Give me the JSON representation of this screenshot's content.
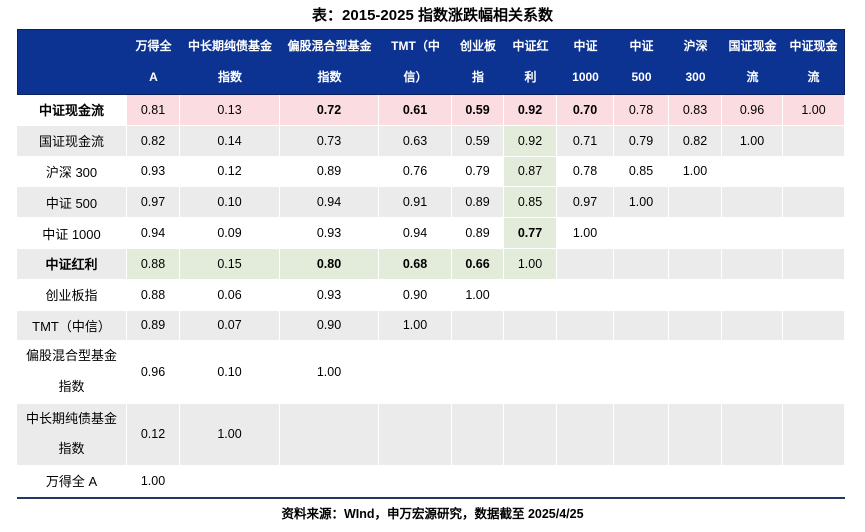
{
  "title": "表：2015-2025 指数涨跌幅相关系数",
  "source_note": "资料来源：WInd，申万宏源研究，数据截至 2025/4/25",
  "colors": {
    "header_bg": "#0D3392",
    "header_border": "#16295C",
    "header_text": "#FFFFFF",
    "stripe_gray": "#EBEBEB",
    "row_white": "#FFFFFF",
    "highlight_pink": "#FADCE1",
    "highlight_green": "#E3ECDA",
    "bottom_rule": "#1F3864",
    "body_text": "#000000"
  },
  "chart_data": {
    "type": "table",
    "title": "表：2015-2025 指数涨跌幅相关系数",
    "source": "资料来源：WInd，申万宏源研究，数据截至 2025/4/25",
    "columns": [
      {
        "label": "万得全 A",
        "lines": [
          "万得全",
          "A"
        ]
      },
      {
        "label": "中长期纯债基金指数",
        "lines": [
          "中长期纯债基金",
          "指数"
        ]
      },
      {
        "label": "偏股混合型基金指数",
        "lines": [
          "偏股混合型基金",
          "指数"
        ]
      },
      {
        "label": "TMT（中信）",
        "lines": [
          "TMT（中",
          "信）"
        ]
      },
      {
        "label": "创业板指",
        "lines": [
          "创业板",
          "指"
        ]
      },
      {
        "label": "中证红利",
        "lines": [
          "中证红",
          "利"
        ]
      },
      {
        "label": "中证 1000",
        "lines": [
          "中证",
          "1000"
        ]
      },
      {
        "label": "中证 500",
        "lines": [
          "中证",
          "500"
        ]
      },
      {
        "label": "沪深 300",
        "lines": [
          "沪深",
          "300"
        ]
      },
      {
        "label": "国证现金流",
        "lines": [
          "国证现金",
          "流"
        ]
      },
      {
        "label": "中证现金流",
        "lines": [
          "中证现金",
          "流"
        ]
      }
    ],
    "rows": [
      {
        "label": "中证现金流",
        "label_lines": [
          "中证现金流"
        ],
        "label_bold": true,
        "stripe": "white",
        "row_highlight": "pink",
        "cells": [
          {
            "v": "0.81"
          },
          {
            "v": "0.13"
          },
          {
            "v": "0.72",
            "b": 1
          },
          {
            "v": "0.61",
            "b": 1
          },
          {
            "v": "0.59",
            "b": 1
          },
          {
            "v": "0.92",
            "b": 1
          },
          {
            "v": "0.70",
            "b": 1
          },
          {
            "v": "0.78"
          },
          {
            "v": "0.83"
          },
          {
            "v": "0.96"
          },
          {
            "v": "1.00"
          }
        ]
      },
      {
        "label": "国证现金流",
        "label_lines": [
          "国证现金流"
        ],
        "label_bold": false,
        "stripe": "gray",
        "row_highlight": null,
        "cells": [
          {
            "v": "0.82"
          },
          {
            "v": "0.14"
          },
          {
            "v": "0.73"
          },
          {
            "v": "0.63"
          },
          {
            "v": "0.59"
          },
          {
            "v": "0.92",
            "g": 1
          },
          {
            "v": "0.71"
          },
          {
            "v": "0.79"
          },
          {
            "v": "0.82"
          },
          {
            "v": "1.00"
          }
        ]
      },
      {
        "label": "沪深 300",
        "label_lines": [
          "沪深 300"
        ],
        "label_bold": false,
        "stripe": "white",
        "row_highlight": null,
        "cells": [
          {
            "v": "0.93"
          },
          {
            "v": "0.12"
          },
          {
            "v": "0.89"
          },
          {
            "v": "0.76"
          },
          {
            "v": "0.79"
          },
          {
            "v": "0.87",
            "g": 1
          },
          {
            "v": "0.78"
          },
          {
            "v": "0.85"
          },
          {
            "v": "1.00"
          }
        ]
      },
      {
        "label": "中证 500",
        "label_lines": [
          "中证 500"
        ],
        "label_bold": false,
        "stripe": "gray",
        "row_highlight": null,
        "cells": [
          {
            "v": "0.97"
          },
          {
            "v": "0.10"
          },
          {
            "v": "0.94"
          },
          {
            "v": "0.91"
          },
          {
            "v": "0.89"
          },
          {
            "v": "0.85",
            "g": 1
          },
          {
            "v": "0.97"
          },
          {
            "v": "1.00"
          }
        ]
      },
      {
        "label": "中证 1000",
        "label_lines": [
          "中证 1000"
        ],
        "label_bold": false,
        "stripe": "white",
        "row_highlight": null,
        "cells": [
          {
            "v": "0.94"
          },
          {
            "v": "0.09"
          },
          {
            "v": "0.93"
          },
          {
            "v": "0.94"
          },
          {
            "v": "0.89"
          },
          {
            "v": "0.77",
            "b": 1,
            "g": 1
          },
          {
            "v": "1.00"
          }
        ]
      },
      {
        "label": "中证红利",
        "label_lines": [
          "中证红利"
        ],
        "label_bold": true,
        "stripe": "gray",
        "row_highlight": null,
        "cells": [
          {
            "v": "0.88",
            "g": 1
          },
          {
            "v": "0.15",
            "g": 1
          },
          {
            "v": "0.80",
            "b": 1,
            "g": 1
          },
          {
            "v": "0.68",
            "b": 1,
            "g": 1
          },
          {
            "v": "0.66",
            "b": 1,
            "g": 1
          },
          {
            "v": "1.00",
            "g": 1
          }
        ]
      },
      {
        "label": "创业板指",
        "label_lines": [
          "创业板指"
        ],
        "label_bold": false,
        "stripe": "white",
        "row_highlight": null,
        "cells": [
          {
            "v": "0.88"
          },
          {
            "v": "0.06"
          },
          {
            "v": "0.93"
          },
          {
            "v": "0.90"
          },
          {
            "v": "1.00"
          }
        ]
      },
      {
        "label": "TMT（中信）",
        "label_lines": [
          "TMT（中信）"
        ],
        "label_bold": false,
        "stripe": "gray",
        "row_highlight": null,
        "cells": [
          {
            "v": "0.89"
          },
          {
            "v": "0.07"
          },
          {
            "v": "0.90"
          },
          {
            "v": "1.00"
          }
        ]
      },
      {
        "label": "偏股混合型基金指数",
        "label_lines": [
          "偏股混合型基金",
          "指数"
        ],
        "label_bold": false,
        "stripe": "white",
        "row_highlight": null,
        "cells": [
          {
            "v": "0.96"
          },
          {
            "v": "0.10"
          },
          {
            "v": "1.00"
          }
        ]
      },
      {
        "label": "中长期纯债基金指数",
        "label_lines": [
          "中长期纯债基金",
          "指数"
        ],
        "label_bold": false,
        "stripe": "gray",
        "row_highlight": null,
        "cells": [
          {
            "v": "0.12"
          },
          {
            "v": "1.00"
          }
        ]
      },
      {
        "label": "万得全 A",
        "label_lines": [
          "万得全 A"
        ],
        "label_bold": false,
        "stripe": "white",
        "row_highlight": null,
        "cells": [
          {
            "v": "1.00"
          }
        ]
      }
    ]
  }
}
